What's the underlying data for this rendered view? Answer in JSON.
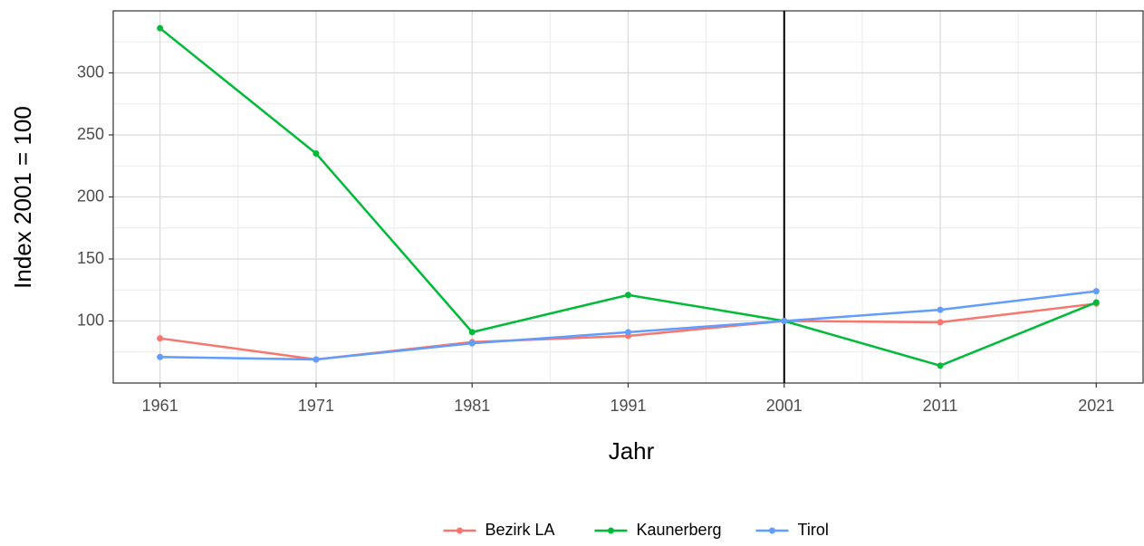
{
  "chart_data": {
    "type": "line",
    "x_label": "Jahr",
    "y_label": "Index 2001 = 100",
    "x": [
      1961,
      1971,
      1981,
      1991,
      2001,
      2011,
      2021
    ],
    "series": [
      {
        "name": "Bezirk LA",
        "color": "#F8766D",
        "values": [
          86,
          69,
          83,
          88,
          100,
          99,
          114
        ]
      },
      {
        "name": "Kaunerberg",
        "color": "#00BA38",
        "values": [
          336,
          235,
          91,
          121,
          100,
          64,
          115
        ]
      },
      {
        "name": "Tirol",
        "color": "#619CFF",
        "values": [
          71,
          69,
          82,
          91,
          100,
          109,
          124
        ]
      }
    ],
    "xlim": [
      1958,
      2024
    ],
    "xticks": [
      1961,
      1971,
      1981,
      1991,
      2001,
      2011,
      2021
    ],
    "ylim": [
      50,
      350
    ],
    "yticks": [
      100,
      150,
      200,
      250,
      300
    ],
    "vline": 2001,
    "grid": true,
    "legend": "bottom"
  }
}
